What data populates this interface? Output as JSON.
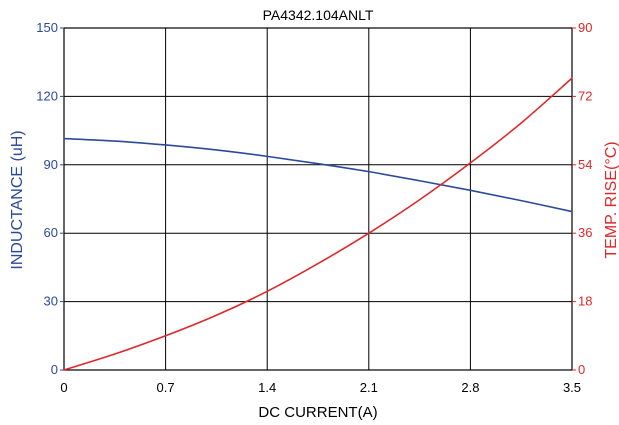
{
  "chart_data": {
    "type": "line",
    "title": "PA4342.104ANLT",
    "xlabel": "DC CURRENT(A)",
    "ylabel_left": "INDUCTANCE (uH)",
    "ylabel_right": "TEMP. RISE(°C)",
    "xlim": [
      0,
      3.5
    ],
    "ylim_left": [
      0,
      150
    ],
    "ylim_right": [
      0,
      90
    ],
    "x_ticks": [
      "0",
      "0.7",
      "1.4",
      "2.1",
      "2.8",
      "3.5"
    ],
    "y_left_ticks": [
      "0",
      "30",
      "60",
      "90",
      "120",
      "150"
    ],
    "y_right_ticks": [
      "0",
      "18",
      "36",
      "54",
      "72",
      "90"
    ],
    "grid": true,
    "legend": "none",
    "colors": {
      "inductance": "#2b4a9c",
      "temp_rise": "#e0282a",
      "axis_left_text": "#2b4a9c",
      "axis_right_text": "#e0282a",
      "grid": "#000000"
    },
    "series": [
      {
        "axis": "left",
        "color": "#2b4a9c",
        "x": [
          0,
          0.35,
          0.7,
          1.05,
          1.4,
          1.75,
          2.1,
          2.45,
          2.8,
          3.15,
          3.5
        ],
        "y": [
          101.5,
          100.4,
          98.7,
          96.5,
          93.7,
          90.5,
          87.0,
          83.0,
          78.8,
          74.3,
          69.5
        ]
      },
      {
        "axis": "right",
        "color": "#e0282a",
        "x": [
          0,
          0.35,
          0.7,
          1.05,
          1.4,
          1.75,
          2.1,
          2.45,
          2.8,
          3.15,
          3.5
        ],
        "y": [
          0,
          4.2,
          9.0,
          14.4,
          20.7,
          28.0,
          36.0,
          44.8,
          54.5,
          65.0,
          76.8
        ]
      }
    ]
  }
}
